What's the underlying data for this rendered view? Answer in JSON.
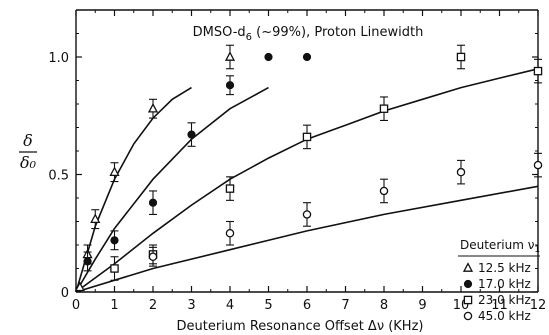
{
  "chart_data": {
    "type": "scatter",
    "title": "DMSO-d6 (~99%), Proton Linewidth",
    "title_parts": {
      "prefix": "DMSO-d",
      "subscript": "6",
      "suffix": " (~99%), Proton Linewidth"
    },
    "xlabel": "Deuterium Resonance Offset Δν  (KHz)",
    "ylabel": "δ / δ₀",
    "ylabel_parts": {
      "top": "δ",
      "bottom": "δ₀"
    },
    "xlim": [
      0,
      12
    ],
    "ylim": [
      0,
      1.2
    ],
    "x_ticks": [
      0,
      1,
      2,
      3,
      4,
      5,
      6,
      7,
      8,
      9,
      10,
      11,
      12
    ],
    "y_ticks": [
      0,
      0.5,
      1.0
    ],
    "y_tick_labels": [
      "0",
      "0.5",
      "1.0"
    ],
    "grid": false,
    "legend": {
      "placement": "bottom-right",
      "title": "Deuterium ν₁",
      "title_parts": {
        "prefix": "Deuterium ν",
        "subscript": "1"
      }
    },
    "series": [
      {
        "name": "12.5 kHz",
        "marker": "triangle-open",
        "points": [
          {
            "x": 0.1,
            "y": 0.02,
            "err": 0.0
          },
          {
            "x": 0.3,
            "y": 0.16,
            "err": 0.04
          },
          {
            "x": 0.5,
            "y": 0.31,
            "err": 0.04
          },
          {
            "x": 1.0,
            "y": 0.51,
            "err": 0.04
          },
          {
            "x": 2.0,
            "y": 0.78,
            "err": 0.04
          },
          {
            "x": 4.0,
            "y": 1.0,
            "err": 0.05
          }
        ],
        "fit": {
          "x": [
            0,
            0.5,
            1.0,
            1.5,
            2.0,
            2.5,
            3.0
          ],
          "y": [
            0,
            0.28,
            0.48,
            0.63,
            0.74,
            0.82,
            0.87
          ]
        }
      },
      {
        "name": "17.0 kHz",
        "marker": "circle-filled",
        "points": [
          {
            "x": 0.3,
            "y": 0.13,
            "err": 0.04
          },
          {
            "x": 1.0,
            "y": 0.22,
            "err": 0.04
          },
          {
            "x": 2.0,
            "y": 0.38,
            "err": 0.05
          },
          {
            "x": 3.0,
            "y": 0.67,
            "err": 0.05
          },
          {
            "x": 4.0,
            "y": 0.88,
            "err": 0.04
          },
          {
            "x": 5.0,
            "y": 1.0,
            "err": 0.0
          },
          {
            "x": 6.0,
            "y": 1.0,
            "err": 0.0
          }
        ],
        "fit": {
          "x": [
            0,
            0.5,
            1.0,
            2.0,
            3.0,
            4.0,
            5.0
          ],
          "y": [
            0,
            0.14,
            0.27,
            0.48,
            0.65,
            0.78,
            0.87
          ]
        }
      },
      {
        "name": "23.0 kHz",
        "marker": "square-open",
        "points": [
          {
            "x": 1.0,
            "y": 0.1,
            "err": 0.05
          },
          {
            "x": 2.0,
            "y": 0.16,
            "err": 0.04
          },
          {
            "x": 4.0,
            "y": 0.44,
            "err": 0.05
          },
          {
            "x": 6.0,
            "y": 0.66,
            "err": 0.05
          },
          {
            "x": 8.0,
            "y": 0.78,
            "err": 0.05
          },
          {
            "x": 10.0,
            "y": 1.0,
            "err": 0.05
          },
          {
            "x": 12.0,
            "y": 0.94,
            "err": 0.05
          }
        ],
        "fit": {
          "x": [
            0,
            1,
            2,
            3,
            4,
            5,
            6,
            7,
            8,
            9,
            10,
            11,
            12
          ],
          "y": [
            0,
            0.12,
            0.25,
            0.37,
            0.48,
            0.57,
            0.65,
            0.71,
            0.77,
            0.82,
            0.87,
            0.91,
            0.95
          ]
        }
      },
      {
        "name": "45.0 kHz",
        "marker": "circle-open",
        "points": [
          {
            "x": 2.0,
            "y": 0.15,
            "err": 0.04
          },
          {
            "x": 4.0,
            "y": 0.25,
            "err": 0.05
          },
          {
            "x": 6.0,
            "y": 0.33,
            "err": 0.05
          },
          {
            "x": 8.0,
            "y": 0.43,
            "err": 0.05
          },
          {
            "x": 10.0,
            "y": 0.51,
            "err": 0.05
          },
          {
            "x": 12.0,
            "y": 0.54,
            "err": 0.05
          }
        ],
        "fit": {
          "x": [
            0,
            2,
            4,
            6,
            8,
            10,
            12
          ],
          "y": [
            0,
            0.1,
            0.18,
            0.26,
            0.33,
            0.39,
            0.45
          ]
        }
      }
    ]
  }
}
